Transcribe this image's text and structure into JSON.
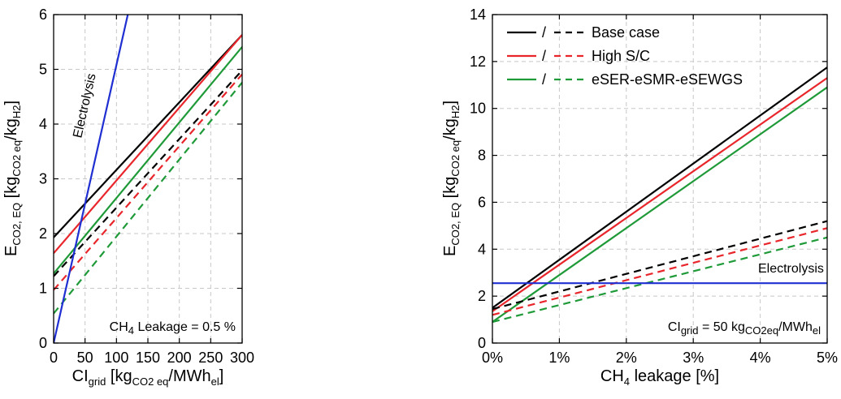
{
  "colors": {
    "base": "#000000",
    "high": "#e8262b",
    "esmr": "#1f9a38",
    "electrolysis": "#1f2fd1"
  },
  "chart_data": [
    {
      "type": "line",
      "xlabel": {
        "main": "CI",
        "sub": "grid",
        "rest": " [kg",
        "sub2": "CO2 eq",
        "rest2": "/MWh",
        "sub3": "el",
        "end": "]"
      },
      "ylabel": {
        "main": "E",
        "sub": "CO2, EQ",
        "rest": " [kg",
        "sub2": "CO2 eq",
        "rest2": "/kg",
        "sub3": "H2",
        "end": "]"
      },
      "xlim": [
        0,
        300
      ],
      "ylim": [
        0,
        6
      ],
      "xticks": [
        "0",
        "50",
        "100",
        "150",
        "200",
        "250",
        "300"
      ],
      "yticks": [
        "0",
        "1",
        "2",
        "3",
        "4",
        "5",
        "6"
      ],
      "xtick_values": [
        0,
        50,
        100,
        150,
        200,
        250,
        300
      ],
      "ytick_values": [
        0,
        1,
        2,
        3,
        4,
        5,
        6
      ],
      "grid": true,
      "annotation": {
        "pre": "CH",
        "sub": "4",
        "post": " Leakage = 0.5 %"
      },
      "series": [
        {
          "color_key": "base",
          "style": "solid",
          "x": [
            0,
            300
          ],
          "y": [
            1.93,
            5.63
          ]
        },
        {
          "color_key": "high",
          "style": "solid",
          "x": [
            0,
            300
          ],
          "y": [
            1.64,
            5.63
          ]
        },
        {
          "color_key": "esmr",
          "style": "solid",
          "x": [
            0,
            300
          ],
          "y": [
            1.27,
            5.41
          ]
        },
        {
          "color_key": "base",
          "style": "dashed",
          "x": [
            0,
            300
          ],
          "y": [
            1.22,
            4.98
          ]
        },
        {
          "color_key": "high",
          "style": "dashed",
          "x": [
            0,
            300
          ],
          "y": [
            0.97,
            4.91
          ]
        },
        {
          "color_key": "esmr",
          "style": "dashed",
          "x": [
            0,
            300
          ],
          "y": [
            0.54,
            4.76
          ]
        },
        {
          "name": "Electrolysis",
          "color_key": "electrolysis",
          "style": "solid",
          "x": [
            0,
            118
          ],
          "y": [
            0,
            6.0
          ],
          "label_at": [
            63,
            4.3
          ]
        }
      ]
    },
    {
      "type": "line",
      "xlabel": {
        "main": "CH",
        "sub": "4",
        "rest": " leakage [%]"
      },
      "ylabel": {
        "main": "E",
        "sub": "CO2, EQ",
        "rest": " [kg",
        "sub2": "CO2 eq",
        "rest2": "/kg",
        "sub3": "H2",
        "end": "]"
      },
      "xlim": [
        0,
        5
      ],
      "ylim": [
        0,
        14
      ],
      "xticks": [
        "0%",
        "1%",
        "2%",
        "3%",
        "4%",
        "5%"
      ],
      "yticks": [
        "0",
        "2",
        "4",
        "6",
        "8",
        "10",
        "12",
        "14"
      ],
      "xtick_values": [
        0,
        1,
        2,
        3,
        4,
        5
      ],
      "ytick_values": [
        0,
        2,
        4,
        6,
        8,
        10,
        12,
        14
      ],
      "grid": true,
      "annotation": {
        "pre": "CI",
        "sub": "grid",
        "post": " = 50 kg",
        "sub2": "CO2eq",
        "post2": "/MWh",
        "sub3": "el"
      },
      "legend": {
        "placement": "top-left",
        "separator": "/",
        "entries": [
          {
            "label": "Base case",
            "color_key": "base"
          },
          {
            "label": "High S/C",
            "color_key": "high"
          },
          {
            "label": "eSER-eSMR-eSEWGS",
            "color_key": "esmr"
          }
        ]
      },
      "series": [
        {
          "color_key": "base",
          "style": "solid",
          "x": [
            0,
            5
          ],
          "y": [
            1.5,
            11.75
          ]
        },
        {
          "color_key": "high",
          "style": "solid",
          "x": [
            0,
            5
          ],
          "y": [
            1.35,
            11.3
          ]
        },
        {
          "color_key": "esmr",
          "style": "solid",
          "x": [
            0,
            5
          ],
          "y": [
            0.9,
            10.9
          ]
        },
        {
          "color_key": "base",
          "style": "dashed",
          "x": [
            0,
            5
          ],
          "y": [
            1.45,
            5.2
          ]
        },
        {
          "color_key": "high",
          "style": "dashed",
          "x": [
            0,
            5
          ],
          "y": [
            1.2,
            4.9
          ]
        },
        {
          "color_key": "esmr",
          "style": "dashed",
          "x": [
            0,
            5
          ],
          "y": [
            0.9,
            4.5
          ]
        },
        {
          "name": "Electrolysis",
          "color_key": "electrolysis",
          "style": "solid",
          "x": [
            0,
            5
          ],
          "y": [
            2.55,
            2.55
          ],
          "label_at": [
            4.95,
            3.0
          ]
        }
      ]
    }
  ]
}
